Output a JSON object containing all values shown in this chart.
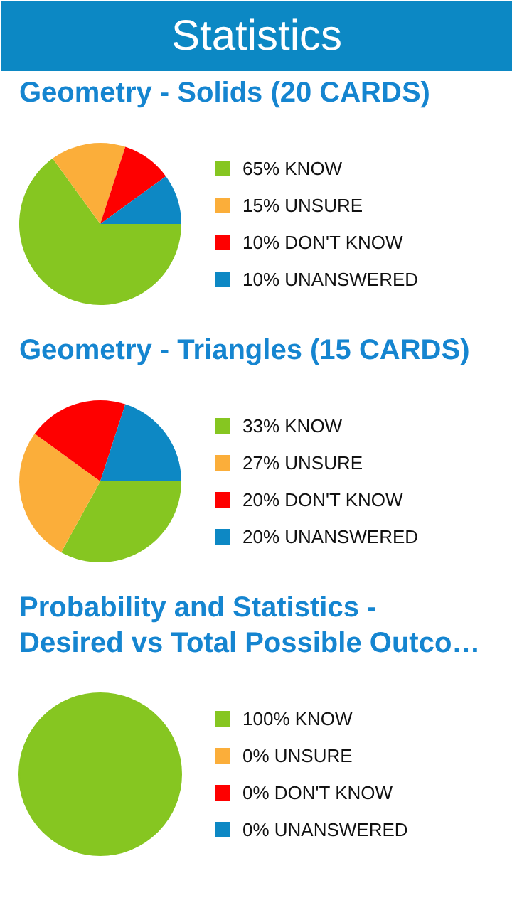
{
  "chart_data": [
    {
      "type": "other",
      "title": "Statistics"
    },
    {
      "type": "pie",
      "title": "Geometry - Solids (20 CARDS)",
      "categories": [
        "65% KNOW",
        "15% UNSURE",
        "10% DON'T KNOW",
        "10% UNANSWERED"
      ],
      "values": [
        65,
        15,
        10,
        10
      ],
      "colors": [
        "#86c621",
        "#fbae3a",
        "#fe0000",
        "#0d88c4"
      ],
      "legend": "right"
    },
    {
      "type": "pie",
      "title": "Geometry - Triangles (15 CARDS)",
      "categories": [
        "33% KNOW",
        "27% UNSURE",
        "20% DON'T KNOW",
        "20% UNANSWERED"
      ],
      "values": [
        33,
        27,
        20,
        20
      ],
      "colors": [
        "#86c621",
        "#fbae3a",
        "#fe0000",
        "#0d88c4"
      ],
      "legend": "right"
    },
    {
      "type": "pie",
      "title": "Probability and Statistics - Desired vs Total Possible Outco…",
      "categories": [
        "100% KNOW",
        "0% UNSURE",
        "0% DON'T KNOW",
        "0% UNANSWERED"
      ],
      "values": [
        100,
        0,
        0,
        0
      ],
      "colors": [
        "#86c621",
        "#fbae3a",
        "#fe0000",
        "#0d88c4"
      ],
      "legend": "right"
    }
  ]
}
